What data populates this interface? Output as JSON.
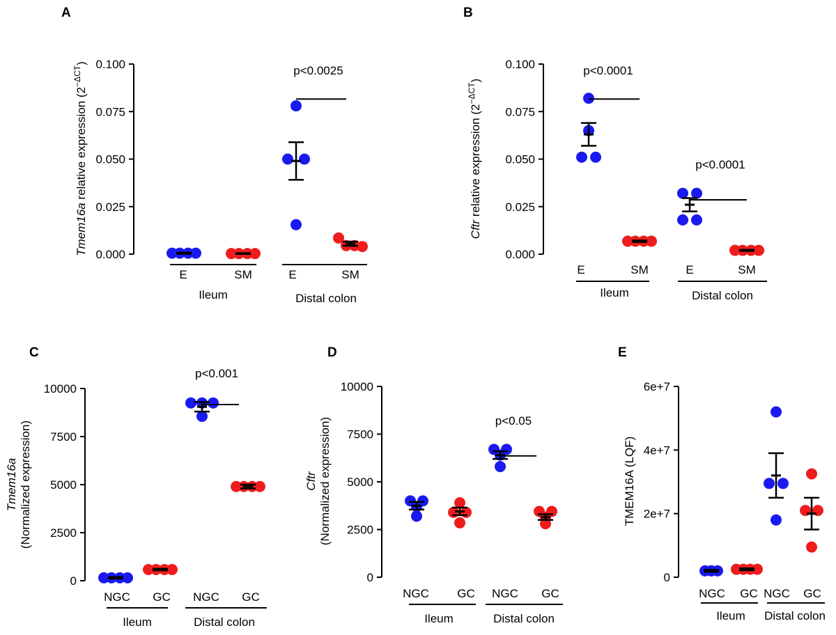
{
  "colors": {
    "blue": "#1a1af0",
    "red": "#ee1c1c",
    "axis": "#000000"
  },
  "chart_data": [
    {
      "panel": "A",
      "type": "scatter",
      "ylabel_italic": "Tmem16a",
      "ylabel_rest": " relative expression (2",
      "ylabel_sup": "−ΔCT",
      "ylabel_close": ")",
      "ylim": [
        0,
        0.1
      ],
      "yticks": [
        0,
        0.025,
        0.05,
        0.075,
        0.1
      ],
      "ytick_labels": [
        "0.000",
        "0.025",
        "0.050",
        "0.075",
        "0.100"
      ],
      "groups": [
        {
          "label": "E",
          "color": "blue",
          "points": [
            0.0005,
            0.0005,
            0.0005,
            0.0005
          ],
          "mean": 0.0005,
          "sem": 0.0003
        },
        {
          "label": "SM",
          "color": "red",
          "points": [
            0.0003,
            0.0003,
            0.0003,
            0.0003
          ],
          "mean": 0.0003,
          "sem": 0.0002
        },
        {
          "label": "E",
          "color": "blue",
          "points": [
            0.078,
            0.05,
            0.05,
            0.0155
          ],
          "mean": 0.049,
          "sem": 0.0099
        },
        {
          "label": "SM",
          "color": "red",
          "points": [
            0.0085,
            0.0045,
            0.0045,
            0.004
          ],
          "mean": 0.0055,
          "sem": 0.0011
        }
      ],
      "regions": [
        "Ileum",
        "Distal colon"
      ],
      "comparisons": [
        {
          "label": "p<0.0025",
          "y": 0.09
        }
      ]
    },
    {
      "panel": "B",
      "type": "scatter",
      "ylabel_italic": "Cftr",
      "ylabel_rest": " relative expression (2",
      "ylabel_sup": "−ΔCT",
      "ylabel_close": ")",
      "ylim": [
        0,
        0.1
      ],
      "yticks": [
        0,
        0.025,
        0.05,
        0.075,
        0.1
      ],
      "ytick_labels": [
        "0.000",
        "0.025",
        "0.050",
        "0.075",
        "0.100"
      ],
      "groups": [
        {
          "label": "E",
          "color": "blue",
          "points": [
            0.082,
            0.065,
            0.051,
            0.051
          ],
          "mean": 0.063,
          "sem": 0.006
        },
        {
          "label": "SM",
          "color": "red",
          "points": [
            0.0068,
            0.0068,
            0.0068,
            0.0068
          ],
          "mean": 0.0068,
          "sem": 0.0004
        },
        {
          "label": "E",
          "color": "blue",
          "points": [
            0.032,
            0.032,
            0.018,
            0.018
          ],
          "mean": 0.026,
          "sem": 0.0035
        },
        {
          "label": "SM",
          "color": "red",
          "points": [
            0.002,
            0.002,
            0.002,
            0.002
          ],
          "mean": 0.002,
          "sem": 0.0003
        }
      ],
      "regions": [
        "Ileum",
        "Distal colon"
      ],
      "comparisons": [
        {
          "label": "p<0.0001",
          "y": 0.09
        },
        {
          "label": "p<0.0001",
          "y": 0.037
        }
      ]
    },
    {
      "panel": "C",
      "type": "scatter",
      "ylabel_italic": "Tmem16a",
      "ylabel_rest": "(Normalized expression)",
      "ylim": [
        0,
        10000
      ],
      "yticks": [
        0,
        2500,
        5000,
        7500,
        10000
      ],
      "ytick_labels": [
        "0",
        "2500",
        "5000",
        "7500",
        "10000"
      ],
      "groups": [
        {
          "label": "NGC",
          "color": "blue",
          "points": [
            150,
            150,
            150,
            150
          ],
          "mean": 150,
          "sem": 40
        },
        {
          "label": "GC",
          "color": "red",
          "points": [
            580,
            580,
            580,
            580
          ],
          "mean": 580,
          "sem": 40
        },
        {
          "label": "NGC",
          "color": "blue",
          "points": [
            9250,
            9250,
            9250,
            8550
          ],
          "mean": 9050,
          "sem": 250
        },
        {
          "label": "GC",
          "color": "red",
          "points": [
            4900,
            4900,
            4900,
            4900
          ],
          "mean": 4900,
          "sem": 100
        }
      ],
      "regions": [
        "Ileum",
        "Distal colon"
      ],
      "comparisons": [
        {
          "label": "p<0.001",
          "y": 10000
        }
      ]
    },
    {
      "panel": "D",
      "type": "scatter",
      "ylabel_italic": "Cftr",
      "ylabel_rest": "(Normalized expression)",
      "ylim": [
        0,
        10000
      ],
      "yticks": [
        0,
        2500,
        5000,
        7500,
        10000
      ],
      "ytick_labels": [
        "0",
        "2500",
        "5000",
        "7500",
        "10000"
      ],
      "groups": [
        {
          "label": "NGC",
          "color": "blue",
          "points": [
            4000,
            4000,
            3700,
            3200
          ],
          "mean": 3750,
          "sem": 200
        },
        {
          "label": "GC",
          "color": "red",
          "points": [
            3900,
            3400,
            3400,
            2850
          ],
          "mean": 3450,
          "sem": 200
        },
        {
          "label": "NGC",
          "color": "blue",
          "points": [
            6700,
            6700,
            6400,
            5800
          ],
          "mean": 6400,
          "sem": 200
        },
        {
          "label": "GC",
          "color": "red",
          "points": [
            3450,
            3450,
            3150,
            2800
          ],
          "mean": 3150,
          "sem": 150
        }
      ],
      "regions": [
        "Ileum",
        "Distal colon"
      ],
      "comparisons": [
        {
          "label": "p<0.05",
          "y": 7200
        }
      ]
    },
    {
      "panel": "E",
      "type": "scatter",
      "ylabel_plain": "TMEM16A (LQF)",
      "ylim": [
        0,
        60000000
      ],
      "yticks": [
        0,
        20000000,
        40000000,
        60000000
      ],
      "ytick_labels": [
        "0",
        "2e+7",
        "4e+7",
        "6e+7"
      ],
      "groups": [
        {
          "label": "NGC",
          "color": "blue",
          "points": [
            2000000,
            2000000,
            2000000,
            2000000
          ],
          "mean": 2000000,
          "sem": 300000
        },
        {
          "label": "GC",
          "color": "red",
          "points": [
            2500000,
            2500000,
            2500000,
            2500000
          ],
          "mean": 2500000,
          "sem": 300000
        },
        {
          "label": "NGC",
          "color": "blue",
          "points": [
            52000000,
            29500000,
            29500000,
            18000000
          ],
          "mean": 32000000,
          "sem": 7000000
        },
        {
          "label": "GC",
          "color": "red",
          "points": [
            32500000,
            21000000,
            21000000,
            9500000
          ],
          "mean": 20000000,
          "sem": 5000000
        }
      ],
      "regions": [
        "Ileum",
        "Distal colon"
      ],
      "comparisons": []
    }
  ]
}
